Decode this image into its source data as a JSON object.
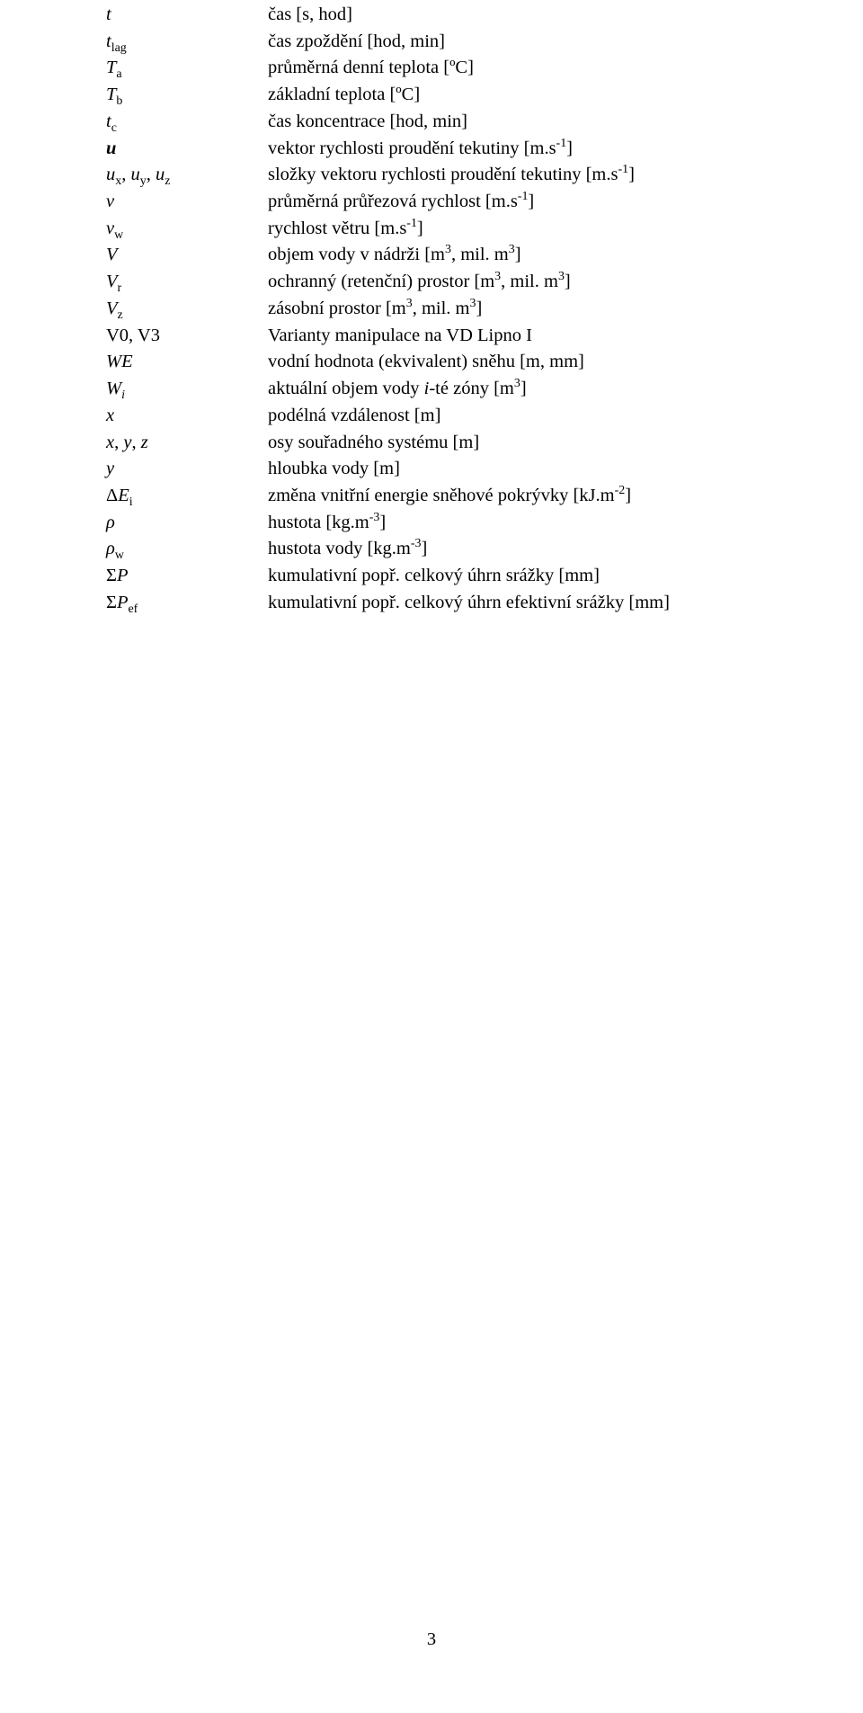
{
  "page_number": "3",
  "rows": [
    {
      "sym": "<i>t</i>",
      "def": "čas [s, hod]"
    },
    {
      "sym": "<i>t</i><sub>lag</sub>",
      "def": "čas zpoždění [hod, min]"
    },
    {
      "sym": "<i>T</i><sub>a</sub>",
      "def": "průměrná denní teplota [ºC]"
    },
    {
      "sym": "<i>T</i><sub>b</sub>",
      "def": "základní teplota [ºC]"
    },
    {
      "sym": "<i>t</i><sub>c</sub>",
      "def": "čas koncentrace [hod, min]"
    },
    {
      "sym": "<i><b>u</b></i>",
      "def": "vektor rychlosti proudění tekutiny [m.s<sup>-1</sup>]"
    },
    {
      "sym": "<i>u</i><sub>x</sub>, <i>u</i><sub>y</sub>, <i>u</i><sub>z</sub>",
      "def": "složky vektoru rychlosti proudění tekutiny [m.s<sup>-1</sup>]"
    },
    {
      "sym": "<i>v</i>",
      "def": "průměrná průřezová rychlost [m.s<sup>-1</sup>]"
    },
    {
      "sym": "<i>v</i><sub>w</sub>",
      "def": "rychlost větru [m.s<sup>-1</sup>]"
    },
    {
      "sym": "<i>V</i>",
      "def": "objem vody v nádrži [m<sup>3</sup>, mil. m<sup>3</sup>]"
    },
    {
      "sym": "<i>V</i><sub>r</sub>",
      "def": "ochranný (retenční) prostor [m<sup>3</sup>, mil. m<sup>3</sup>]"
    },
    {
      "sym": "<i>V</i><sub>z</sub>",
      "def": "zásobní prostor [m<sup>3</sup>, mil. m<sup>3</sup>]"
    },
    {
      "sym": "V0, V3",
      "def": "Varianty manipulace na VD Lipno I"
    },
    {
      "sym": "<i>WE</i>",
      "def": "vodní hodnota (ekvivalent) sněhu [m, mm]"
    },
    {
      "sym": "<i>W<sub>i</sub></i>",
      "def": "aktuální objem vody <i>i</i>-té zóny [m<sup>3</sup>]"
    },
    {
      "sym": "<i>x</i>",
      "def": "podélná vzdálenost [m]"
    },
    {
      "sym": "<i>x</i>, <i>y</i>, <i>z</i>",
      "def": "osy souřadného systému [m]"
    },
    {
      "sym": "<i>y</i>",
      "def": "hloubka vody [m]"
    },
    {
      "sym": "&#916;<i>E</i><sub>i</sub>",
      "def": "změna vnitřní energie sněhové pokrývky [kJ.m<sup>-2</sup>]"
    },
    {
      "sym": "<i>&#961;</i>",
      "def": "hustota [kg.m<sup>-3</sup>]"
    },
    {
      "sym": "<i>&#961;</i><sub>w</sub>",
      "def": "hustota vody [kg.m<sup>-3</sup>]"
    },
    {
      "sym": "&#931;<i>P</i>",
      "def": "kumulativní popř. celkový úhrn srážky [mm]"
    },
    {
      "sym": "&#931;<i>P</i><sub>ef</sub>",
      "def": "kumulativní popř. celkový úhrn efektivní srážky [mm]"
    }
  ]
}
